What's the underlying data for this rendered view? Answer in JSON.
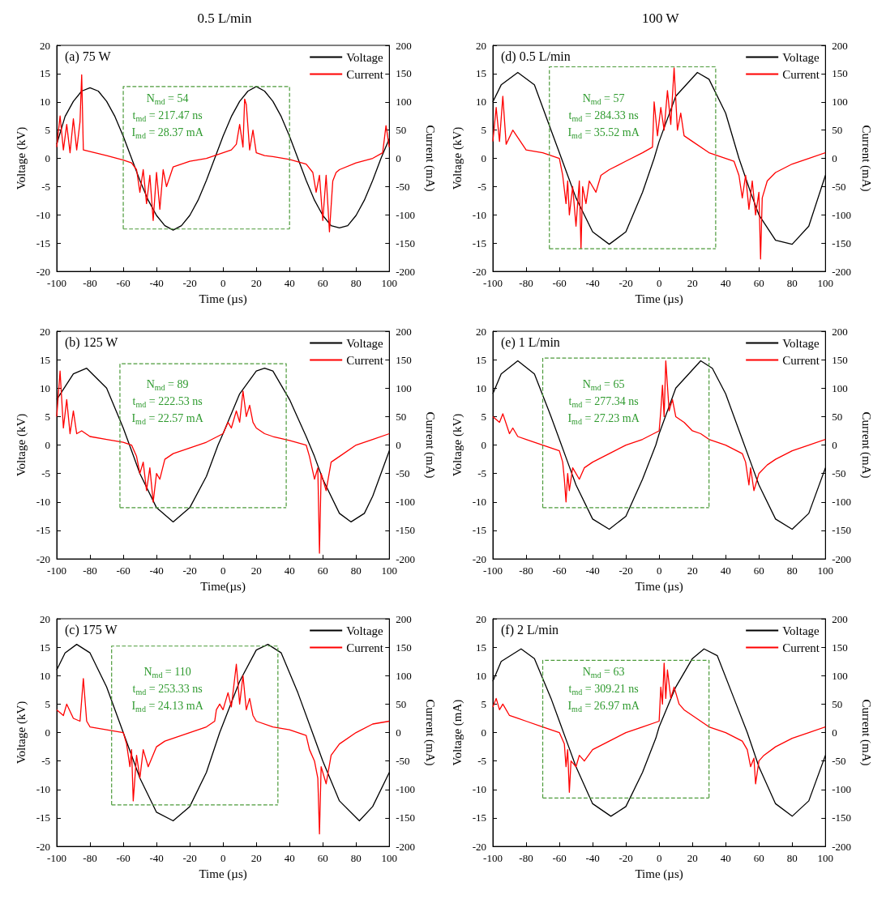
{
  "chart_data": [
    {
      "type": "line",
      "title": "0.5 L/min",
      "subtitle": "(a) 75 W",
      "xlabel": "Time (µs)",
      "ylabel": "Voltage (kV)",
      "y2label": "Current (mA)",
      "legend": "top right",
      "xlim": [
        -100,
        100
      ],
      "xticks": [
        -100,
        -80,
        -60,
        -40,
        -20,
        0,
        20,
        40,
        60,
        80,
        100
      ],
      "ylim": [
        -20,
        20
      ],
      "yticks": [
        -20,
        -15,
        -10,
        -5,
        0,
        5,
        10,
        15,
        20
      ],
      "y2lim": [
        -200,
        200
      ],
      "y2ticks": [
        -200,
        -150,
        -100,
        -50,
        0,
        50,
        100,
        150,
        200
      ],
      "annotations": [
        "N$_{md}$ = 54",
        "t$_{md}$ = 217.47 ns",
        "I$_{md}$ = 28.37 mA"
      ],
      "series": [
        {
          "name": "Voltage",
          "color": "#000000",
          "x": [
            -100,
            -95,
            -90,
            -85,
            -80,
            -75,
            -70,
            -65,
            -60,
            -55,
            -50,
            -45,
            -40,
            -35,
            -30,
            -25,
            -20,
            -15,
            -10,
            -5,
            0,
            5,
            10,
            15,
            20,
            25,
            30,
            35,
            40,
            45,
            50,
            55,
            60,
            65,
            70,
            75,
            80,
            85,
            90,
            95,
            100
          ],
          "values": [
            2.5,
            7.4,
            10.1,
            11.9,
            12.5,
            11.9,
            10.1,
            7.4,
            3.9,
            0,
            -3.9,
            -7.4,
            -10.1,
            -11.9,
            -12.7,
            -11.9,
            -10.1,
            -7.4,
            -3.9,
            0,
            3.9,
            7.4,
            10.1,
            11.9,
            12.7,
            11.9,
            10.1,
            7.4,
            3.9,
            0,
            -3.9,
            -7.4,
            -10.1,
            -11.9,
            -12.3,
            -11.9,
            -10.1,
            -7.4,
            -3.9,
            0,
            3.5
          ]
        },
        {
          "name": "Current",
          "color": "#ff0000",
          "axis": "y2",
          "x": [
            -100,
            -98,
            -96,
            -94,
            -92,
            -90,
            -88,
            -86,
            -85,
            -84,
            -80,
            -70,
            -60,
            -55,
            -52,
            -50,
            -48,
            -46,
            -44,
            -42,
            -40,
            -38,
            -36,
            -34,
            -30,
            -25,
            -20,
            -10,
            0,
            5,
            8,
            10,
            12,
            13,
            14,
            16,
            18,
            20,
            25,
            30,
            40,
            50,
            54,
            56,
            58,
            60,
            62,
            64,
            66,
            68,
            70,
            80,
            90,
            96,
            98,
            100
          ],
          "values": [
            20,
            75,
            15,
            60,
            10,
            70,
            15,
            65,
            148,
            15,
            12,
            5,
            -3,
            -8,
            -20,
            -60,
            -20,
            -80,
            -30,
            -110,
            -25,
            -90,
            -20,
            -50,
            -15,
            -10,
            -5,
            0,
            10,
            15,
            25,
            60,
            20,
            105,
            95,
            15,
            50,
            10,
            5,
            3,
            -2,
            -10,
            -25,
            -60,
            -30,
            -110,
            -30,
            -130,
            -40,
            -25,
            -20,
            -8,
            0,
            10,
            58,
            20
          ]
        },
        {
          "color": "#4c9a3a",
          "line_style": "dashed",
          "x": [
            -60,
            -60,
            40,
            40
          ],
          "values": [
            -12.5,
            12.7,
            12.7,
            -12.5
          ]
        },
        {
          "color": "#4c9a3a",
          "line_style": "dashed",
          "x": [
            -60,
            40
          ],
          "values": [
            -12.5,
            -12.5
          ]
        }
      ]
    },
    {
      "type": "line",
      "subtitle": "(b) 125 W",
      "xlabel": "Time(µs)",
      "ylabel": "Voltage (kV)",
      "y2label": "Current (mA)",
      "legend": "top right",
      "xlim": [
        -100,
        100
      ],
      "xticks": [
        -100,
        -80,
        -60,
        -40,
        -20,
        0,
        20,
        40,
        60,
        80,
        100
      ],
      "ylim": [
        -20,
        20
      ],
      "yticks": [
        -20,
        -15,
        -10,
        -5,
        0,
        5,
        10,
        15,
        20
      ],
      "y2lim": [
        -200,
        200
      ],
      "y2ticks": [
        -200,
        -150,
        -100,
        -50,
        0,
        50,
        100,
        150,
        200
      ],
      "annotations": [
        "N$_{md}$ = 89",
        "t$_{md}$ = 222.53 ns",
        "I$_{md}$ = 22.57 mA"
      ],
      "series": [
        {
          "name": "Voltage",
          "color": "#000000",
          "x": [
            -100,
            -90,
            -82,
            -70,
            -60,
            -55,
            -50,
            -40,
            -30,
            -20,
            -10,
            -3,
            0,
            10,
            20,
            25,
            30,
            40,
            50,
            55,
            60,
            70,
            77,
            85,
            90,
            100
          ],
          "values": [
            8,
            12.5,
            13.5,
            10,
            3,
            -1,
            -5,
            -11,
            -13.5,
            -11,
            -5.5,
            0,
            2,
            9,
            13,
            13.5,
            13,
            8,
            1.5,
            -2,
            -6,
            -12,
            -13.5,
            -12,
            -9,
            -1
          ]
        },
        {
          "name": "Current",
          "color": "#ff0000",
          "axis": "y2",
          "x": [
            -100,
            -98,
            -96,
            -94,
            -92,
            -90,
            -88,
            -85,
            -80,
            -70,
            -60,
            -55,
            -52,
            -50,
            -48,
            -46,
            -44,
            -42,
            -40,
            -38,
            -35,
            -30,
            -20,
            -10,
            0,
            3,
            5,
            8,
            10,
            12,
            14,
            16,
            18,
            20,
            25,
            30,
            40,
            50,
            52,
            55,
            57,
            58,
            59,
            62,
            65,
            70,
            80,
            90,
            100
          ],
          "values": [
            50,
            130,
            30,
            80,
            20,
            60,
            20,
            25,
            15,
            10,
            5,
            0,
            -20,
            -50,
            -30,
            -80,
            -40,
            -100,
            -50,
            -60,
            -25,
            -15,
            -5,
            5,
            20,
            40,
            30,
            60,
            40,
            95,
            50,
            70,
            40,
            30,
            20,
            15,
            8,
            0,
            -20,
            -60,
            -40,
            -190,
            -50,
            -80,
            -30,
            -20,
            0,
            10,
            20
          ]
        },
        {
          "color": "#4c9a3a",
          "line_style": "dashed",
          "x": [
            -62,
            -62,
            38,
            38
          ],
          "values": [
            -11,
            14.3,
            14.3,
            -11
          ]
        },
        {
          "color": "#4c9a3a",
          "line_style": "dashed",
          "x": [
            -62,
            38
          ],
          "values": [
            -11,
            -11
          ]
        }
      ]
    },
    {
      "type": "line",
      "subtitle": "(c) 175 W",
      "xlabel": "Time (µs)",
      "ylabel": "Voltage (kV)",
      "y2label": "Current (mA)",
      "legend": "top right",
      "xlim": [
        -100,
        100
      ],
      "xticks": [
        -100,
        -80,
        -60,
        -40,
        -20,
        0,
        20,
        40,
        60,
        80,
        100
      ],
      "ylim": [
        -20,
        20
      ],
      "yticks": [
        -20,
        -15,
        -10,
        -5,
        0,
        5,
        10,
        15,
        20
      ],
      "y2lim": [
        -200,
        200
      ],
      "y2ticks": [
        -200,
        -150,
        -100,
        -50,
        0,
        50,
        100,
        150,
        200
      ],
      "annotations": [
        "N$_{md}$ = 110",
        "t$_{md}$ = 253.33 ns",
        "I$_{md}$ = 24.13 mA"
      ],
      "series": [
        {
          "name": "Voltage",
          "color": "#000000",
          "x": [
            -100,
            -95,
            -88,
            -80,
            -70,
            -60,
            -55,
            -50,
            -40,
            -30,
            -20,
            -10,
            -2,
            0,
            10,
            20,
            27,
            35,
            45,
            55,
            60,
            70,
            82,
            90,
            100
          ],
          "values": [
            11,
            14,
            15.5,
            14,
            8,
            0,
            -4,
            -8,
            -14,
            -15.5,
            -13,
            -7,
            0,
            1.5,
            9,
            14.5,
            15.5,
            14,
            7,
            -1,
            -5,
            -12,
            -15.5,
            -13,
            -7
          ]
        },
        {
          "name": "Current",
          "color": "#ff0000",
          "axis": "y2",
          "x": [
            -100,
            -96,
            -94,
            -90,
            -86,
            -84,
            -82,
            -80,
            -70,
            -60,
            -58,
            -56,
            -55,
            -54,
            -52,
            -50,
            -48,
            -45,
            -40,
            -35,
            -30,
            -20,
            -10,
            -5,
            -4,
            -2,
            0,
            3,
            5,
            8,
            10,
            12,
            14,
            16,
            18,
            20,
            30,
            40,
            50,
            52,
            55,
            57,
            58,
            59,
            62,
            65,
            70,
            80,
            90,
            100
          ],
          "values": [
            40,
            30,
            50,
            25,
            20,
            95,
            20,
            10,
            5,
            0,
            -20,
            -60,
            -30,
            -120,
            -40,
            -80,
            -30,
            -60,
            -25,
            -15,
            -10,
            0,
            10,
            20,
            40,
            50,
            40,
            70,
            45,
            120,
            50,
            100,
            40,
            60,
            30,
            20,
            10,
            5,
            -5,
            -30,
            -50,
            -80,
            -178,
            -60,
            -90,
            -40,
            -20,
            0,
            15,
            20
          ]
        },
        {
          "color": "#4c9a3a",
          "line_style": "dashed",
          "x": [
            -67,
            -67,
            33,
            33
          ],
          "values": [
            -12.7,
            15.2,
            15.2,
            -12.7
          ]
        },
        {
          "color": "#4c9a3a",
          "line_style": "dashed",
          "x": [
            -67,
            33
          ],
          "values": [
            -12.7,
            -12.7
          ]
        }
      ]
    },
    {
      "type": "line",
      "title": "100 W",
      "subtitle": "(d) 0.5 L/min",
      "xlabel": "Time (µs)",
      "ylabel": "Voltage (kV)",
      "y2label": "Current (mA)",
      "legend": "top right",
      "xlim": [
        -100,
        100
      ],
      "xticks": [
        -100,
        -80,
        -60,
        -40,
        -20,
        0,
        20,
        40,
        60,
        80,
        100
      ],
      "ylim": [
        -20,
        20
      ],
      "yticks": [
        -20,
        -15,
        -10,
        -5,
        0,
        5,
        10,
        15,
        20
      ],
      "y2lim": [
        -200,
        200
      ],
      "y2ticks": [
        -200,
        -150,
        -100,
        -50,
        0,
        50,
        100,
        150,
        200
      ],
      "annotations": [
        "N$_{md}$ = 57",
        "t$_{md}$ = 284.33 ns",
        "I$_{md}$ = 35.52 mA"
      ],
      "series": [
        {
          "name": "Voltage",
          "color": "#000000",
          "x": [
            -100,
            -95,
            -85,
            -75,
            -65,
            -60,
            -55,
            -50,
            -40,
            -30,
            -20,
            -10,
            -3,
            0,
            10,
            23,
            30,
            40,
            48,
            55,
            60,
            70,
            80,
            90,
            100
          ],
          "values": [
            10,
            13,
            15.2,
            13,
            5,
            1,
            -3,
            -7,
            -13,
            -15.2,
            -13,
            -6,
            0,
            3,
            11,
            15.2,
            14,
            8,
            0,
            -6,
            -10,
            -14.5,
            -15.2,
            -12,
            -3
          ]
        },
        {
          "name": "Current",
          "color": "#ff0000",
          "axis": "y2",
          "x": [
            -100,
            -98,
            -96,
            -94,
            -92,
            -88,
            -80,
            -70,
            -65,
            -60,
            -58,
            -56,
            -55,
            -54,
            -52,
            -50,
            -48,
            -47,
            -46,
            -44,
            -42,
            -38,
            -35,
            -30,
            -20,
            -10,
            -4,
            -3,
            -1,
            1,
            3,
            5,
            7,
            9,
            11,
            13,
            15,
            20,
            30,
            40,
            45,
            48,
            50,
            52,
            54,
            56,
            58,
            60,
            61,
            62,
            65,
            70,
            80,
            90,
            100
          ],
          "values": [
            30,
            90,
            30,
            110,
            25,
            50,
            15,
            10,
            5,
            0,
            -30,
            -80,
            -40,
            -100,
            -50,
            -120,
            -40,
            -160,
            -50,
            -80,
            -40,
            -60,
            -30,
            -20,
            -5,
            10,
            20,
            100,
            40,
            90,
            50,
            120,
            60,
            160,
            50,
            80,
            40,
            30,
            10,
            0,
            -5,
            -30,
            -70,
            -30,
            -90,
            -40,
            -100,
            -60,
            -178,
            -70,
            -40,
            -25,
            -10,
            0,
            10
          ]
        },
        {
          "color": "#4c9a3a",
          "line_style": "dashed",
          "x": [
            -66,
            -66,
            34,
            34
          ],
          "values": [
            -16,
            16.2,
            16.2,
            -16
          ]
        },
        {
          "color": "#4c9a3a",
          "line_style": "dashed",
          "x": [
            -66,
            34
          ],
          "values": [
            -16,
            -16
          ]
        }
      ]
    },
    {
      "type": "line",
      "subtitle": "(e) 1 L/min",
      "xlabel": "Time (µs)",
      "ylabel": "Voltage (kV)",
      "y2label": "Current (mA)",
      "legend": "top right",
      "xlim": [
        -100,
        100
      ],
      "xticks": [
        -100,
        -80,
        -60,
        -40,
        -20,
        0,
        20,
        40,
        60,
        80,
        100
      ],
      "ylim": [
        -20,
        20
      ],
      "yticks": [
        -20,
        -15,
        -10,
        -5,
        0,
        5,
        10,
        15,
        20
      ],
      "y2lim": [
        -200,
        200
      ],
      "y2ticks": [
        -200,
        -150,
        -100,
        -50,
        0,
        50,
        100,
        150,
        200
      ],
      "annotations": [
        "N$_{md}$ = 65",
        "t$_{md}$ = 277.34 ns",
        "I$_{md}$ = 27.23 mA"
      ],
      "series": [
        {
          "name": "Voltage",
          "color": "#000000",
          "x": [
            -100,
            -95,
            -85,
            -75,
            -65,
            -60,
            -55,
            -50,
            -40,
            -30,
            -20,
            -10,
            -2,
            0,
            10,
            25,
            32,
            40,
            50,
            55,
            60,
            70,
            80,
            90,
            100
          ],
          "values": [
            9,
            12.5,
            14.8,
            12.5,
            5,
            1,
            -3,
            -7,
            -13,
            -14.8,
            -12.5,
            -6,
            0,
            2,
            10,
            14.8,
            13.5,
            9,
            1,
            -3,
            -7,
            -13,
            -14.8,
            -12,
            -4
          ]
        },
        {
          "name": "Current",
          "color": "#ff0000",
          "axis": "y2",
          "x": [
            -100,
            -96,
            -94,
            -90,
            -88,
            -85,
            -80,
            -70,
            -60,
            -58,
            -57,
            -56,
            -55,
            -54,
            -52,
            -48,
            -45,
            -40,
            -30,
            -20,
            -10,
            0,
            1,
            2,
            3,
            4,
            6,
            8,
            10,
            15,
            20,
            25,
            30,
            40,
            50,
            52,
            54,
            55,
            57,
            60,
            65,
            70,
            80,
            90,
            100
          ],
          "values": [
            50,
            40,
            55,
            20,
            30,
            15,
            10,
            0,
            -10,
            -30,
            -60,
            -100,
            -50,
            -80,
            -40,
            -60,
            -40,
            -30,
            -15,
            0,
            10,
            25,
            60,
            105,
            50,
            148,
            60,
            80,
            50,
            40,
            25,
            20,
            10,
            0,
            -15,
            -30,
            -70,
            -40,
            -80,
            -50,
            -35,
            -25,
            -10,
            0,
            10
          ]
        },
        {
          "color": "#4c9a3a",
          "line_style": "dashed",
          "x": [
            -70,
            -70,
            30,
            30
          ],
          "values": [
            -11,
            15.3,
            15.3,
            -11
          ]
        },
        {
          "color": "#4c9a3a",
          "line_style": "dashed",
          "x": [
            -70,
            30
          ],
          "values": [
            -11,
            -11
          ]
        }
      ]
    },
    {
      "type": "line",
      "subtitle": "(f) 2 L/min",
      "xlabel": "Time (µs)",
      "ylabel": "Voltage (mA)",
      "y2label": "Current (mA)",
      "legend": "top right",
      "xlim": [
        -100,
        100
      ],
      "xticks": [
        -100,
        -80,
        -60,
        -40,
        -20,
        0,
        20,
        40,
        60,
        80,
        100
      ],
      "ylim": [
        -20,
        20
      ],
      "yticks": [
        -20,
        -15,
        -10,
        -5,
        0,
        5,
        10,
        15,
        20
      ],
      "y2lim": [
        -200,
        200
      ],
      "y2ticks": [
        -200,
        -150,
        -100,
        -50,
        0,
        50,
        100,
        150,
        200
      ],
      "annotations": [
        "N$_{md}$ = 63",
        "t$_{md}$ = 309.21 ns",
        "I$_{md}$ = 26.97 mA"
      ],
      "series": [
        {
          "name": "Voltage",
          "color": "#000000",
          "x": [
            -100,
            -95,
            -83,
            -75,
            -65,
            -60,
            -55,
            -50,
            -40,
            -29,
            -20,
            -10,
            -2,
            0,
            10,
            20,
            27,
            35,
            45,
            53,
            60,
            70,
            80,
            90,
            100
          ],
          "values": [
            9,
            12.5,
            14.7,
            13,
            6,
            2,
            -2,
            -6,
            -12.5,
            -14.7,
            -13,
            -7,
            -1,
            1,
            8,
            13,
            14.7,
            13.5,
            6,
            0,
            -6,
            -12.5,
            -14.7,
            -12,
            -4
          ]
        },
        {
          "name": "Current",
          "color": "#ff0000",
          "axis": "y2",
          "x": [
            -100,
            -98,
            -96,
            -94,
            -90,
            -85,
            -80,
            -70,
            -60,
            -57,
            -56,
            -55,
            -54,
            -53,
            -50,
            -48,
            -45,
            -40,
            -30,
            -20,
            -10,
            0,
            1,
            2,
            3,
            4,
            5,
            7,
            9,
            12,
            15,
            20,
            25,
            30,
            40,
            50,
            53,
            55,
            57,
            58,
            60,
            63,
            70,
            80,
            90,
            100
          ],
          "values": [
            45,
            60,
            40,
            50,
            30,
            25,
            20,
            10,
            0,
            -20,
            -60,
            -30,
            -105,
            -50,
            -60,
            -40,
            -50,
            -30,
            -15,
            0,
            10,
            20,
            80,
            50,
            122,
            60,
            110,
            60,
            80,
            50,
            40,
            30,
            20,
            10,
            0,
            -15,
            -30,
            -60,
            -45,
            -90,
            -50,
            -40,
            -25,
            -10,
            0,
            10
          ]
        },
        {
          "color": "#4c9a3a",
          "line_style": "dashed",
          "x": [
            -70,
            -70,
            30,
            30
          ],
          "values": [
            -11.5,
            12.7,
            12.7,
            -11.5
          ]
        },
        {
          "color": "#4c9a3a",
          "line_style": "dashed",
          "x": [
            -70,
            30
          ],
          "values": [
            -11.5,
            -11.5
          ]
        }
      ]
    }
  ]
}
